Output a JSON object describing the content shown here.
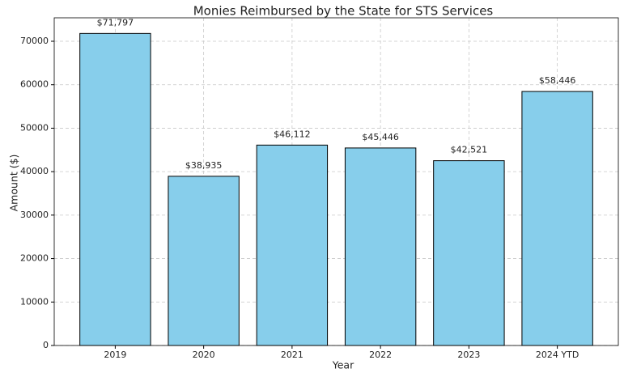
{
  "chart_data": {
    "type": "bar",
    "title": "Monies Reimbursed by the State for STS Services",
    "x_label": "Year",
    "y_label": "Amount ($)",
    "categories": [
      "2019",
      "2020",
      "2021",
      "2022",
      "2023",
      "2024 YTD"
    ],
    "values": [
      71797,
      38935,
      46112,
      45446,
      42521,
      58446
    ],
    "value_labels": [
      "$71,797",
      "$38,935",
      "$46,112",
      "$45,446",
      "$42,521",
      "$58,446"
    ],
    "color": "#87ceeb",
    "edge_color": "#000000",
    "ylim": [
      0,
      75400
    ],
    "yticks": [
      0,
      10000,
      20000,
      30000,
      40000,
      50000,
      60000,
      70000
    ],
    "grid": true
  }
}
